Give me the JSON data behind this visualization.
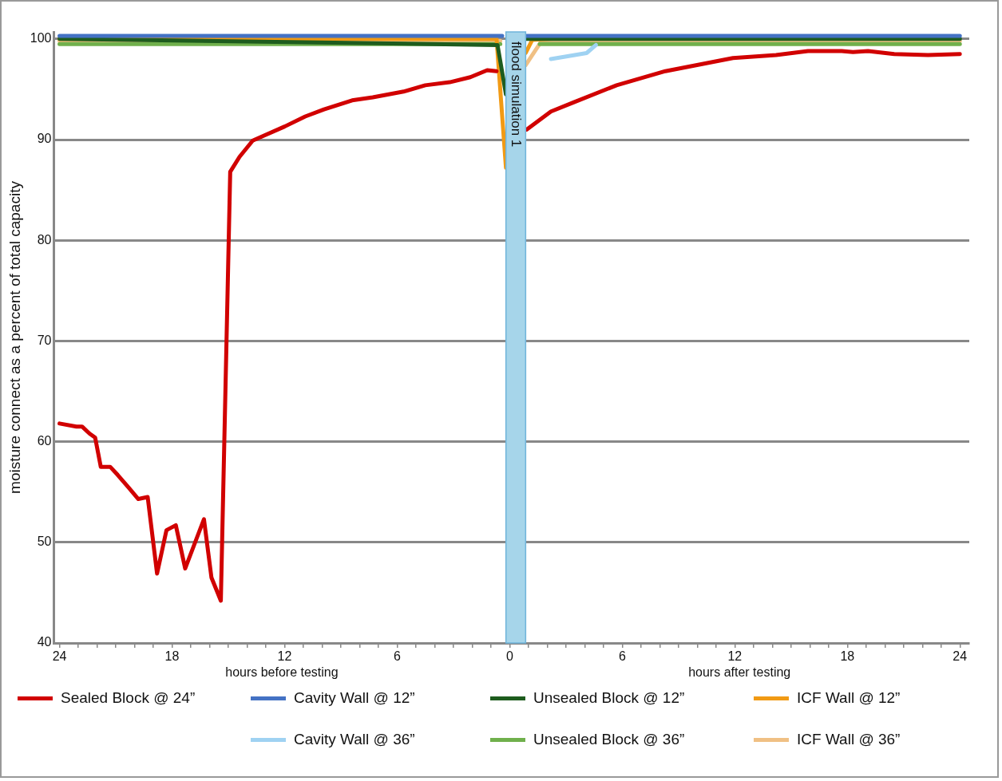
{
  "chart_data": {
    "type": "line",
    "xlabel": "hours before testing",
    "ylabel": "moisture connect as a percent of total capacity",
    "annotations": [
      "hours after testing"
    ],
    "xlim": [
      -24.3,
      24.5
    ],
    "xticks": [
      {
        "value": -24,
        "label": "24"
      },
      {
        "value": -23,
        "label": null
      },
      {
        "value": -22,
        "label": null
      },
      {
        "value": -21,
        "label": null
      },
      {
        "value": -20,
        "label": null
      },
      {
        "value": -19,
        "label": null
      },
      {
        "value": -18,
        "label": "18"
      },
      {
        "value": -17,
        "label": null
      },
      {
        "value": -16,
        "label": null
      },
      {
        "value": -15,
        "label": null
      },
      {
        "value": -14,
        "label": null
      },
      {
        "value": -13,
        "label": null
      },
      {
        "value": -12,
        "label": "12"
      },
      {
        "value": -11,
        "label": null
      },
      {
        "value": -10,
        "label": null
      },
      {
        "value": -9,
        "label": null
      },
      {
        "value": -8,
        "label": null
      },
      {
        "value": -7,
        "label": null
      },
      {
        "value": -6,
        "label": "6"
      },
      {
        "value": -5,
        "label": null
      },
      {
        "value": -4,
        "label": null
      },
      {
        "value": -3,
        "label": null
      },
      {
        "value": -2,
        "label": null
      },
      {
        "value": -1,
        "label": null
      },
      {
        "value": 0,
        "label": "0"
      },
      {
        "value": 1,
        "label": null
      },
      {
        "value": 2,
        "label": null
      },
      {
        "value": 3,
        "label": null
      },
      {
        "value": 4,
        "label": null
      },
      {
        "value": 5,
        "label": null
      },
      {
        "value": 6,
        "label": "6"
      },
      {
        "value": 7,
        "label": null
      },
      {
        "value": 8,
        "label": null
      },
      {
        "value": 9,
        "label": null
      },
      {
        "value": 10,
        "label": null
      },
      {
        "value": 11,
        "label": null
      },
      {
        "value": 12,
        "label": "12"
      },
      {
        "value": 13,
        "label": null
      },
      {
        "value": 14,
        "label": null
      },
      {
        "value": 15,
        "label": null
      },
      {
        "value": 16,
        "label": null
      },
      {
        "value": 17,
        "label": null
      },
      {
        "value": 18,
        "label": "18"
      },
      {
        "value": 19,
        "label": null
      },
      {
        "value": 20,
        "label": null
      },
      {
        "value": 21,
        "label": null
      },
      {
        "value": 22,
        "label": null
      },
      {
        "value": 23,
        "label": null
      },
      {
        "value": 24,
        "label": "24"
      }
    ],
    "ylim": [
      40,
      100.7
    ],
    "yticks": [
      40,
      50,
      60,
      70,
      80,
      90,
      100
    ],
    "grid": "y",
    "legend": "bottom",
    "marker": "none",
    "line_style": "solid",
    "bands": [
      {
        "axis": "x",
        "from": -0.2,
        "to": 0.85,
        "label": "flood simulation 1",
        "color": "#a6d5ea"
      }
    ],
    "series": [
      {
        "name": "Sealed Block @ 24”",
        "color": "#d10000",
        "x": [
          -24.0,
          -23.1,
          -22.8,
          -22.4,
          -22.1,
          -21.8,
          -21.3,
          -20.9,
          -20.3,
          -19.8,
          -19.3,
          -18.8,
          -18.3,
          -17.8,
          -17.3,
          -16.3,
          -15.9,
          -15.4,
          -14.9,
          -14.4,
          -13.7,
          -13.1,
          -12.0,
          -10.9,
          -9.9,
          -8.4,
          -7.3,
          -5.6,
          -4.5,
          -3.2,
          -2.1,
          -1.2,
          -0.7,
          0.1,
          0.9,
          2.2,
          3.4,
          5.7,
          8.3,
          11.9,
          14.2,
          15.9,
          17.7,
          18.3,
          19.1,
          20.5,
          22.3,
          24.0
        ],
        "values": [
          61.8,
          61.5,
          61.5,
          60.8,
          60.4,
          57.5,
          57.5,
          56.7,
          55.4,
          54.3,
          54.5,
          46.9,
          51.2,
          51.7,
          47.4,
          52.3,
          46.5,
          44.2,
          86.8,
          88.3,
          89.9,
          90.4,
          91.3,
          92.3,
          93.0,
          93.9,
          94.2,
          94.8,
          95.4,
          95.7,
          96.2,
          96.9,
          96.8,
          null,
          91.0,
          92.8,
          93.7,
          95.4,
          96.8,
          98.1,
          98.4,
          98.8,
          98.8,
          98.7,
          98.8,
          98.5,
          98.4,
          98.5
        ]
      },
      {
        "name": "Cavity Wall @ 12”",
        "color": "#4472c4",
        "x": [
          -24.0,
          -0.4,
          0.1,
          0.9,
          24.0
        ],
        "values": [
          100.3,
          100.3,
          null,
          100.3,
          100.3
        ]
      },
      {
        "name": "Unsealed Block @ 12”",
        "color": "#1e5c1e",
        "x": [
          -24.0,
          -0.65,
          -0.2,
          0.1,
          0.9,
          24.0
        ],
        "values": [
          100.0,
          99.4,
          94.5,
          null,
          100.0,
          100.0
        ]
      },
      {
        "name": "ICF Wall @ 12”",
        "color": "#f19a14",
        "x": [
          -24.0,
          -0.7,
          -0.2,
          0.1,
          0.85,
          1.2,
          3.0
        ],
        "values": [
          100.0,
          100.0,
          87.2,
          null,
          98.6,
          99.9,
          100.1
        ]
      },
      {
        "name": "Cavity Wall @ 36”",
        "color": "#9fd2f2",
        "x": [
          2.2,
          4.1,
          4.6
        ],
        "values": [
          98.0,
          98.6,
          99.4
        ]
      },
      {
        "name": "Unsealed Block @ 36”",
        "color": "#70b04c",
        "x": [
          -24.0,
          -0.5,
          0.1,
          1.6,
          24.0
        ],
        "values": [
          99.5,
          99.5,
          null,
          99.5,
          99.5
        ]
      },
      {
        "name": "ICF Wall @ 36”",
        "color": "#f0c084",
        "x": [
          -24.0,
          -0.5,
          0.1,
          0.85,
          1.7,
          24.0
        ],
        "values": [
          99.8,
          99.8,
          null,
          97.4,
          99.8,
          99.8
        ]
      }
    ]
  }
}
